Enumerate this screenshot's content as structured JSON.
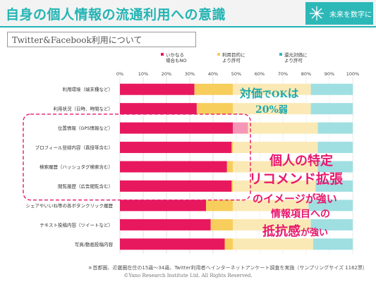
{
  "header": {
    "title": "自身の個人情報の流通利用への意識",
    "logo_text": "未来を数字に"
  },
  "subtitle": "Twitter&Facebook利用について",
  "chart_data": {
    "type": "stacked-horizontal-bar",
    "xlim": [
      0,
      100
    ],
    "xticks": [
      "0%",
      "10%",
      "20%",
      "30%",
      "40%",
      "50%",
      "60%",
      "70%",
      "80%",
      "90%",
      "100%"
    ],
    "grid": true,
    "legend_position": "top",
    "series": [
      {
        "name": "いかなる\n場合もNO",
        "color": "#e8185e",
        "values": [
          32,
          33,
          55,
          48,
          46,
          48,
          37,
          39,
          45
        ]
      },
      {
        "name": "利用目的に\nより許可",
        "color": "#f7ce5c",
        "values": [
          50,
          49,
          30,
          37,
          39,
          36,
          44,
          43,
          38
        ]
      },
      {
        "name": "還元対価に\nより許可",
        "color": "#2bb8bc",
        "values": [
          18,
          18,
          15,
          15,
          15,
          16,
          19,
          18,
          17
        ]
      }
    ],
    "categories": [
      "利用環境（端末種など）",
      "利用状況（日時、時間など）",
      "位置情報（GPS情報など）",
      "プロフィール登録内容（直接等含む）",
      "検索履歴（ハッシュタグ検索含む）",
      "閲覧履歴（広告閲覧含む）",
      "シェアやいいね等の各ボタンクリック履歴",
      "テキスト投稿内容（ツイートなど）",
      "写真/動画投稿内容"
    ]
  },
  "annotations": {
    "line1_a": "対価",
    "line1_b": "でOK",
    "line1_c": "は",
    "line2_a": "20%",
    "line2_b": "弱",
    "line3": "個人の特定",
    "line4": "リコメンド拡張",
    "line5": "のイメージが強い",
    "line6": "情報項目への",
    "line7_a": "抵抗感",
    "line7_b": "が強い"
  },
  "footnote": "＊首都圏、近畿圏在住の15歳～34歳、Twitter利用者へインターネットアンケート調査を実施（サンプリングサイズ 1162票）",
  "copyright": "©Yano Research Institute Ltd. All Rights Reserved."
}
